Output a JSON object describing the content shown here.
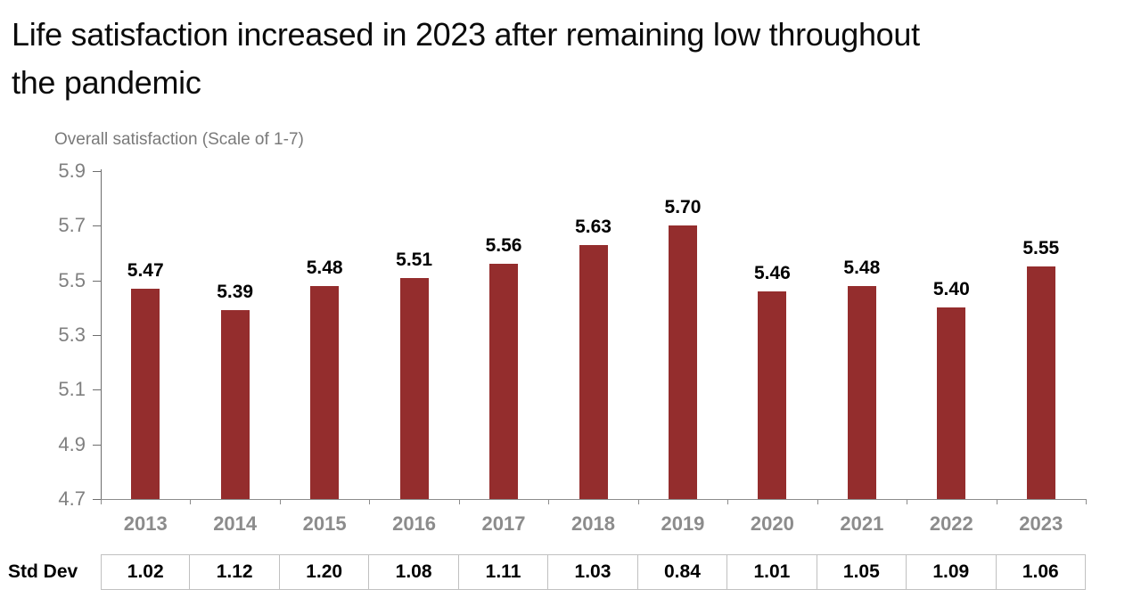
{
  "title": {
    "text": "Life satisfaction increased in 2023 after remaining low throughout the pandemic",
    "line1": "Life satisfaction increased in 2023 after remaining low throughout",
    "line2": "the pandemic"
  },
  "y_axis_title": "Overall satisfaction (Scale of 1-7)",
  "std_dev_row_label": "Std Dev",
  "colors": {
    "bar": "#942D2D",
    "title_text": "#0B0B0B",
    "axis_line": "#6E6E6E",
    "y_tick_label": "#7F7F7F",
    "year_label": "#8C8C8C",
    "value_label": "#000000",
    "table_border": "#C0C0C0",
    "table_text": "#000000"
  },
  "chart_data": {
    "type": "bar",
    "title": "Life satisfaction increased in 2023 after remaining low throughout the pandemic",
    "ylabel": "Overall satisfaction (Scale of 1-7)",
    "xlabel": "",
    "categories": [
      "2013",
      "2014",
      "2015",
      "2016",
      "2017",
      "2018",
      "2019",
      "2020",
      "2021",
      "2022",
      "2023"
    ],
    "series": [
      {
        "name": "Overall satisfaction",
        "values": [
          5.47,
          5.39,
          5.48,
          5.51,
          5.56,
          5.63,
          5.7,
          5.46,
          5.48,
          5.4,
          5.55
        ]
      },
      {
        "name": "Std Dev",
        "values": [
          1.02,
          1.12,
          1.2,
          1.08,
          1.11,
          1.03,
          0.84,
          1.01,
          1.05,
          1.09,
          1.06
        ]
      }
    ],
    "ylim": [
      4.7,
      5.9
    ],
    "yticks": [
      5.9,
      5.7,
      5.5,
      5.3,
      5.1,
      4.9,
      4.7
    ],
    "grid": false,
    "legend": false,
    "data_labels": true,
    "value_format_decimals": 2
  }
}
